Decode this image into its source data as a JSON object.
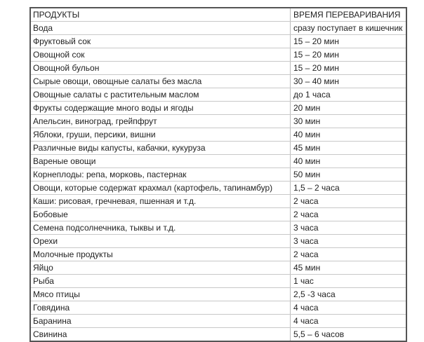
{
  "table": {
    "headers": [
      "ПРОДУКТЫ",
      "ВРЕМЯ ПЕРЕВАРИВАНИЯ"
    ],
    "rows": [
      [
        "Вода",
        "сразу поступает в кишечник"
      ],
      [
        "Фруктовый сок",
        "15 – 20 мин"
      ],
      [
        "Овощной сок",
        "15 – 20 мин"
      ],
      [
        "Овощной бульон",
        "15 – 20 мин"
      ],
      [
        "Сырые овощи, овощные салаты без масла",
        "30 – 40 мин"
      ],
      [
        "Овощные салаты с растительным маслом",
        "до 1 часа"
      ],
      [
        "Фрукты содержащие много воды и ягоды",
        "20 мин"
      ],
      [
        "Апельсин, виноград, грейпфрут",
        "30 мин"
      ],
      [
        "Яблоки, груши, персики, вишни",
        "40 мин"
      ],
      [
        "Различные виды капусты, кабачки, кукуруза",
        "45 мин"
      ],
      [
        "Вареные овощи",
        "40 мин"
      ],
      [
        "Корнеплоды: репа, морковь, пастернак",
        "50 мин"
      ],
      [
        "Овощи, которые содержат крахмал (картофель, тапинамбур)",
        "1,5 – 2 часа"
      ],
      [
        "Каши: рисовая, гречневая, пшенная и т.д.",
        "2 часа"
      ],
      [
        "Бобовые",
        "2 часа"
      ],
      [
        "Семена подсолнечника, тыквы и т.д.",
        "3 часа"
      ],
      [
        "Орехи",
        "3 часа"
      ],
      [
        "Молочные продукты",
        "2 часа"
      ],
      [
        "Яйцо",
        "45 мин"
      ],
      [
        "Рыба",
        "1 час"
      ],
      [
        "Мясо птицы",
        "2,5 -3 часа"
      ],
      [
        "Говядина",
        "4 часа"
      ],
      [
        "Баранина",
        "4 часа"
      ],
      [
        "Свинина",
        "5,5 – 6 часов"
      ]
    ]
  }
}
